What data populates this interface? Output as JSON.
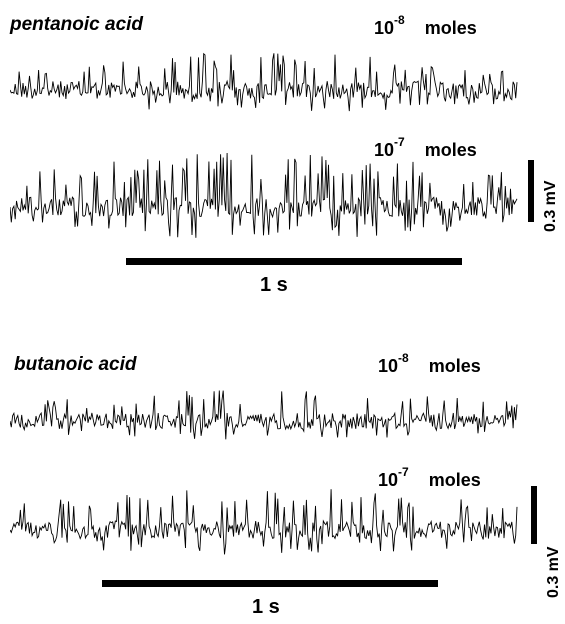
{
  "panels": [
    {
      "title": "pentanoic acid",
      "traces": [
        {
          "base": "10",
          "exp": "-8",
          "unit": "moles",
          "spike_density": 0.55,
          "spike_amp": 0.75
        },
        {
          "base": "10",
          "exp": "-7",
          "unit": "moles",
          "spike_density": 0.8,
          "spike_amp": 1.0
        }
      ],
      "time_scale": "1 s",
      "voltage_scale": "0.3 mV"
    },
    {
      "title": "butanoic acid",
      "traces": [
        {
          "base": "10",
          "exp": "-8",
          "unit": "moles",
          "spike_density": 0.45,
          "spike_amp": 0.7
        },
        {
          "base": "10",
          "exp": "-7",
          "unit": "moles",
          "spike_density": 0.6,
          "spike_amp": 0.85
        }
      ],
      "time_scale": "1 s",
      "voltage_scale": "0.3 mV"
    }
  ]
}
